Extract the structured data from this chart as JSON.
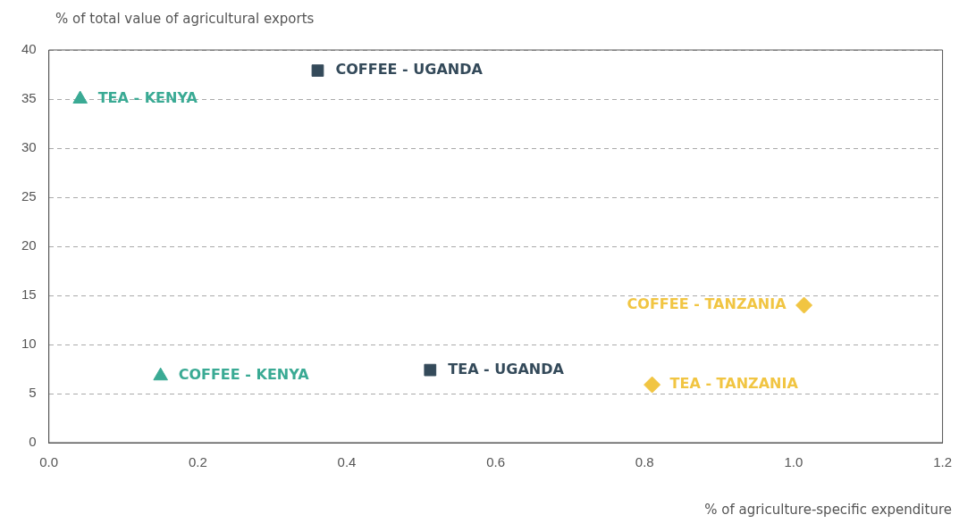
{
  "chart_data": {
    "type": "scatter",
    "xlabel": "% of agriculture-specific expenditure",
    "ylabel": "% of total value of agricultural exports",
    "series": [
      {
        "color": "#3aaa94",
        "marker": "triangle",
        "x": [
          0.042,
          0.15
        ],
        "values": [
          35,
          6.8
        ]
      },
      {
        "color": "#344a5a",
        "marker": "square",
        "x": [
          0.361,
          0.512
        ],
        "values": [
          37.9,
          7.4
        ]
      },
      {
        "color": "#f1c542",
        "marker": "diamond",
        "x": [
          1.014,
          0.81
        ],
        "values": [
          14,
          5.9
        ]
      }
    ],
    "annotations": [
      {
        "text": "TEA - KENYA",
        "x": 0.042,
        "y": 35
      },
      {
        "text": "COFFEE - KENYA",
        "x": 0.15,
        "y": 6.8
      },
      {
        "text": "COFFEE - UGANDA",
        "x": 0.361,
        "y": 37.9
      },
      {
        "text": "TEA - UGANDA",
        "x": 0.512,
        "y": 7.4
      },
      {
        "text": "COFFEE - TANZANIA",
        "x": 1.014,
        "y": 14
      },
      {
        "text": "TEA - TANZANIA",
        "x": 0.81,
        "y": 5.9
      }
    ],
    "xlim": [
      0,
      1.2
    ],
    "xticks": [
      {
        "value": 0,
        "label": "0.0"
      },
      {
        "value": 0.2,
        "label": "0.2"
      },
      {
        "value": 0.4,
        "label": "0.4"
      },
      {
        "value": 0.6,
        "label": "0.6"
      },
      {
        "value": 0.8,
        "label": "0.8"
      },
      {
        "value": 1,
        "label": "1.0"
      },
      {
        "value": 1.2,
        "label": "1.2"
      }
    ],
    "ylim": [
      0,
      40
    ],
    "yticks": [
      0,
      5,
      10,
      15,
      20,
      25,
      30,
      35,
      40
    ],
    "grid": "y",
    "line_style": "dashed",
    "legend": false
  }
}
